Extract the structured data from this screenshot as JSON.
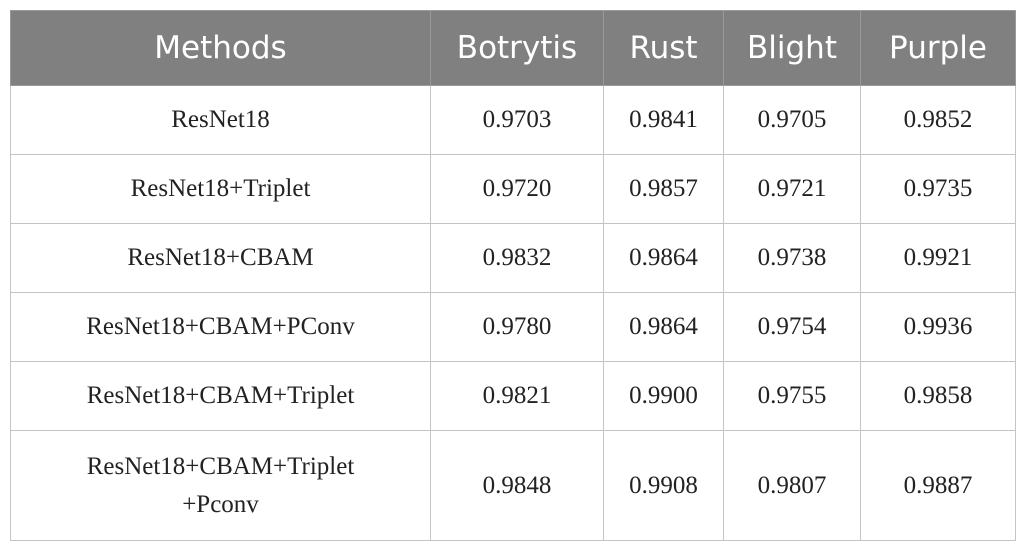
{
  "table": {
    "header": [
      "Methods",
      "Botrytis",
      "Rust",
      "Blight",
      "Purple"
    ],
    "rows": [
      {
        "method": [
          "ResNet18"
        ],
        "values": [
          "0.9703",
          "0.9841",
          "0.9705",
          "0.9852"
        ]
      },
      {
        "method": [
          "ResNet18+Triplet"
        ],
        "values": [
          "0.9720",
          "0.9857",
          "0.9721",
          "0.9735"
        ]
      },
      {
        "method": [
          "ResNet18+CBAM"
        ],
        "values": [
          "0.9832",
          "0.9864",
          "0.9738",
          "0.9921"
        ]
      },
      {
        "method": [
          "ResNet18+CBAM+PConv"
        ],
        "values": [
          "0.9780",
          "0.9864",
          "0.9754",
          "0.9936"
        ]
      },
      {
        "method": [
          "ResNet18+CBAM+Triplet"
        ],
        "values": [
          "0.9821",
          "0.9900",
          "0.9755",
          "0.9858"
        ]
      },
      {
        "method": [
          "ResNet18+CBAM+Triplet",
          "+Pconv"
        ],
        "values": [
          "0.9848",
          "0.9908",
          "0.9807",
          "0.9887"
        ]
      }
    ]
  }
}
